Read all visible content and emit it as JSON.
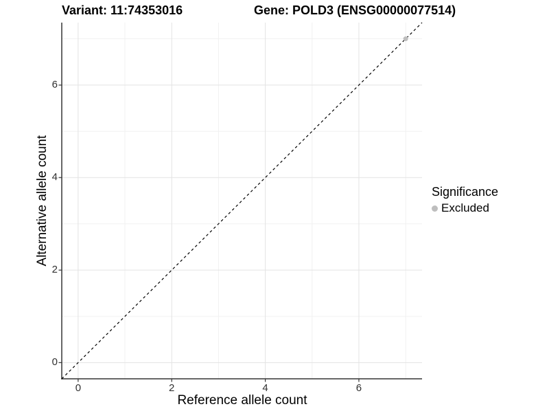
{
  "chart_data": {
    "type": "scatter",
    "titles": {
      "variant": "Variant: 11:74353016",
      "gene": "Gene: POLD3 (ENSG00000077514)"
    },
    "xlabel": "Reference allele count",
    "ylabel": "Alternative allele count",
    "xlim": [
      0,
      7
    ],
    "ylim": [
      0,
      7
    ],
    "expand_frac": 0.05,
    "x_ticks": [
      0,
      2,
      4,
      6
    ],
    "y_ticks": [
      0,
      2,
      4,
      6
    ],
    "x_minor_gridlines": [
      1,
      3,
      5,
      7
    ],
    "y_minor_gridlines": [
      1,
      3,
      5,
      7
    ],
    "grid": "major and minor, light gray on white panel",
    "reference_line": {
      "slope": 1,
      "intercept": 0,
      "style": "dashed",
      "color": "#000000"
    },
    "series": [
      {
        "name": "Excluded",
        "color": "#BEBEBE",
        "points": [
          {
            "x": 7,
            "y": 7
          }
        ]
      }
    ],
    "legend": {
      "title": "Significance",
      "position": "right",
      "items": [
        {
          "label": "Excluded",
          "color": "#BEBEBE"
        }
      ]
    }
  },
  "style": {
    "major_grid_color": "#E3E3E3",
    "minor_grid_color": "#F1F1F1",
    "axis_line_color": "#333333",
    "tick_mark_color": "#333333",
    "tick_label_color": "#303030",
    "point_radius": 3.5
  }
}
